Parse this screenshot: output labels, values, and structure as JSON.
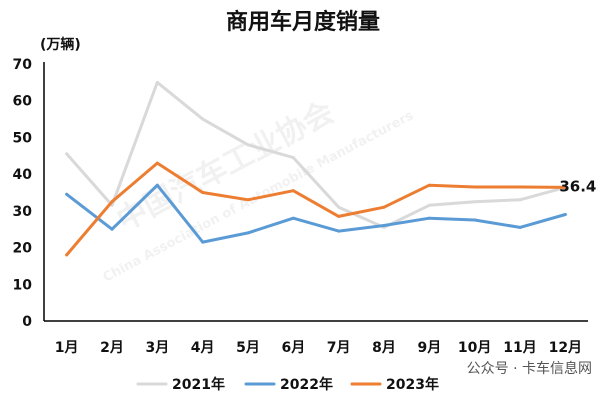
{
  "chart_data": {
    "type": "line",
    "title": "商用车月度销量",
    "ylabel": "(万辆)",
    "categories": [
      "1月",
      "2月",
      "3月",
      "4月",
      "5月",
      "6月",
      "7月",
      "8月",
      "9月",
      "10月",
      "11月",
      "12月"
    ],
    "ylim": [
      0,
      70
    ],
    "yticks": [
      0,
      10,
      20,
      30,
      40,
      50,
      60,
      70
    ],
    "series": [
      {
        "name": "2021年",
        "color": "#d9d9d9",
        "values": [
          45.5,
          31.5,
          65,
          55,
          48,
          44.5,
          31,
          25.5,
          31.5,
          32.5,
          33,
          36.4
        ]
      },
      {
        "name": "2022年",
        "color": "#5b9bd5",
        "values": [
          34.5,
          25,
          37,
          21.5,
          24,
          28,
          24.5,
          26,
          28,
          27.5,
          25.5,
          29
        ]
      },
      {
        "name": "2023年",
        "color": "#ed7d31",
        "values": [
          18,
          32.5,
          43,
          35,
          33,
          35.5,
          28.5,
          31,
          37,
          36.5,
          36.5,
          36.4
        ]
      }
    ],
    "end_label": "36.4",
    "legend_position": "bottom",
    "grid": false
  },
  "watermark": {
    "text_cn": "中国汽车工业协会",
    "text_en": "China Association of Automobile Manufacturers",
    "corner": "公众号 · 卡车信息网"
  }
}
